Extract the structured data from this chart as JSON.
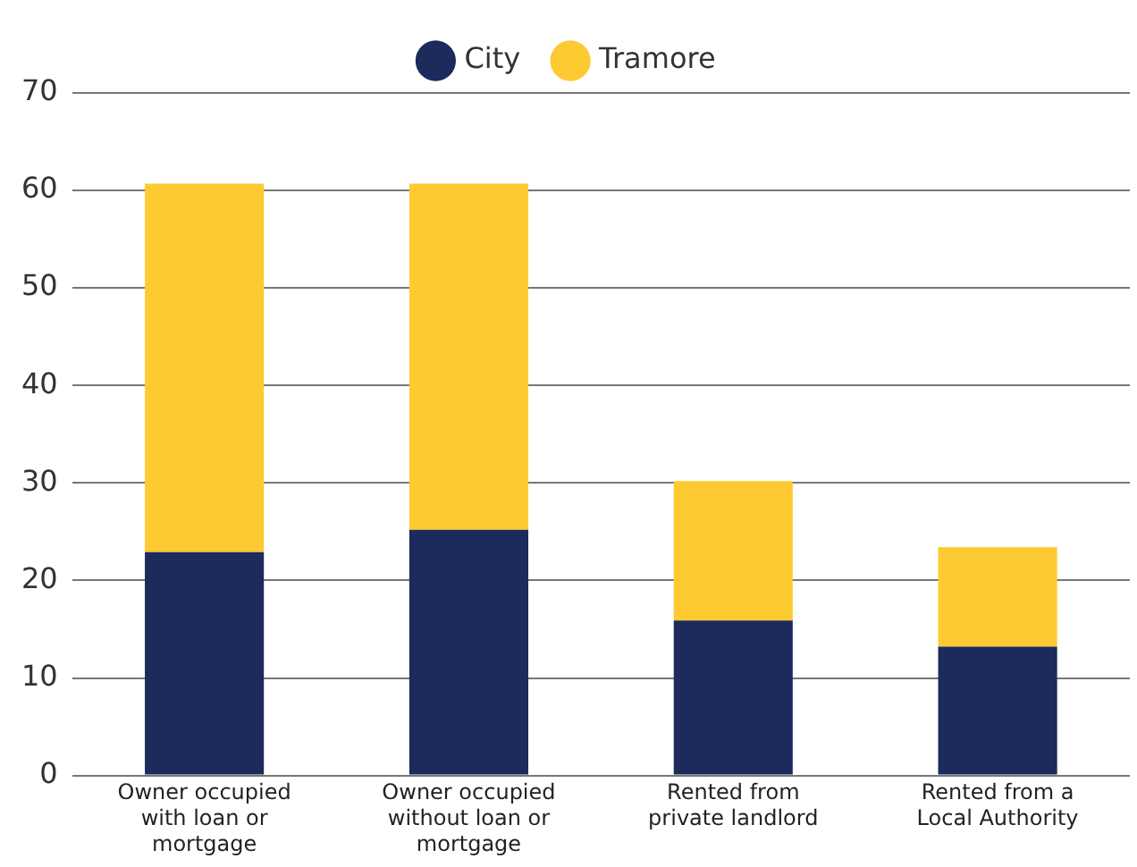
{
  "chart_data": {
    "type": "bar",
    "stacked": true,
    "categories": [
      "Owner occupied with loan or mortgage",
      "Owner occupied without loan or mortgage",
      "Rented from private landlord",
      "Rented from a Local Authority"
    ],
    "series": [
      {
        "name": "City",
        "color": "#1c2a5c",
        "values": [
          22.9,
          25.2,
          15.9,
          13.2
        ]
      },
      {
        "name": "Tramore",
        "color": "#fdca31",
        "values": [
          37.8,
          35.5,
          14.3,
          10.2
        ]
      }
    ],
    "ylim": [
      0,
      70
    ],
    "yticks": [
      0,
      10,
      20,
      30,
      40,
      50,
      60,
      70
    ],
    "grid": "y",
    "legend": "top"
  }
}
